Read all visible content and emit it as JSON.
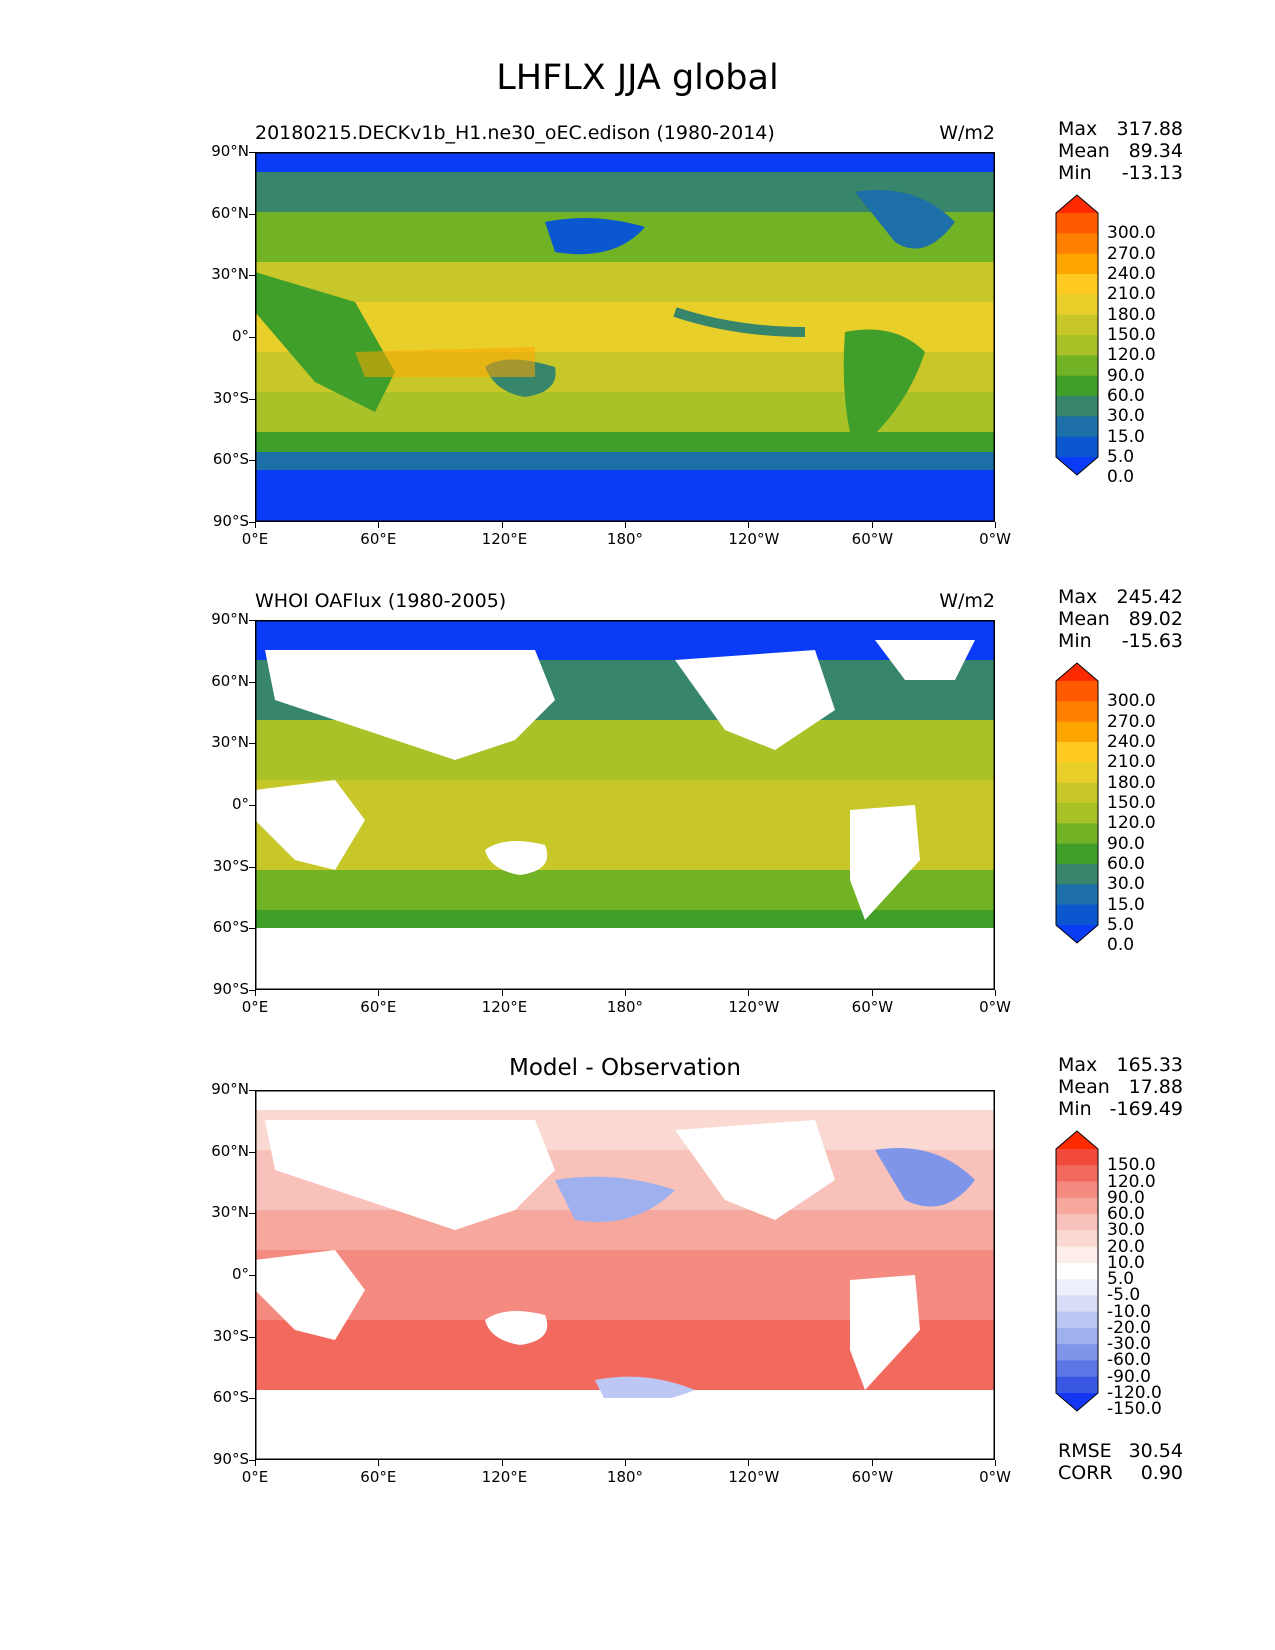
{
  "title": "LHFLX JJA global",
  "axes": {
    "lat_ticks": [
      "90°N",
      "60°N",
      "30°N",
      "0°",
      "30°S",
      "60°S",
      "90°S"
    ],
    "lon_ticks": [
      "0°E",
      "60°E",
      "120°E",
      "180°",
      "120°W",
      "60°W",
      "0°W"
    ]
  },
  "panels": [
    {
      "label": "20180215.DECKv1b_H1.ne30_oEC.edison (1980-2014)",
      "units": "W/m2",
      "stats": [
        [
          "Max",
          "317.88"
        ],
        [
          "Mean",
          "89.34"
        ],
        [
          "Min",
          "-13.13"
        ]
      ]
    },
    {
      "label": "WHOI OAFlux (1980-2005)",
      "units": "W/m2",
      "stats": [
        [
          "Max",
          "245.42"
        ],
        [
          "Mean",
          "89.02"
        ],
        [
          "Min",
          "-15.63"
        ]
      ]
    },
    {
      "label": "Model - Observation",
      "units": "",
      "stats": [
        [
          "Max",
          "165.33"
        ],
        [
          "Mean",
          "17.88"
        ],
        [
          "Min",
          "-169.49"
        ]
      ],
      "metrics": [
        [
          "RMSE",
          "30.54"
        ],
        [
          "CORR",
          "0.90"
        ]
      ]
    }
  ],
  "colorbar_field": {
    "ticks": [
      "300.0",
      "270.0",
      "240.0",
      "210.0",
      "180.0",
      "150.0",
      "120.0",
      "90.0",
      "60.0",
      "30.0",
      "15.0",
      "5.0",
      "0.0"
    ],
    "colors": [
      "#ff2a00",
      "#ff5a00",
      "#ff7f00",
      "#ffa500",
      "#ffcb20",
      "#e9cf2a",
      "#c7c72a",
      "#a8c228",
      "#72b326",
      "#3f9f2a",
      "#37856b",
      "#1d6fa8",
      "#0b57d0",
      "#0a3cf7"
    ]
  },
  "colorbar_diff": {
    "ticks": [
      "150.0",
      "120.0",
      "90.0",
      "60.0",
      "30.0",
      "20.0",
      "10.0",
      "5.0",
      "-5.0",
      "-10.0",
      "-20.0",
      "-30.0",
      "-60.0",
      "-90.0",
      "-120.0",
      "-150.0"
    ],
    "colors": [
      "#ff2a00",
      "#f14a3a",
      "#f26a5e",
      "#f48a80",
      "#f6a79e",
      "#f8c1b9",
      "#fbd9d3",
      "#fdeeea",
      "#ffffff",
      "#eef0fb",
      "#d7ddf7",
      "#bcc8f3",
      "#9fb0ef",
      "#7f95ea",
      "#5c76e6",
      "#3a57e4",
      "#1236f2"
    ]
  },
  "chart_data": [
    {
      "type": "heatmap",
      "title": "20180215.DECKv1b_H1.ne30_oEC.edison (1980-2014)",
      "units": "W/m2",
      "xlim": [
        0,
        360
      ],
      "ylim": [
        -90,
        90
      ],
      "levels": [
        0,
        5,
        15,
        30,
        60,
        90,
        120,
        150,
        180,
        210,
        240,
        270,
        300
      ],
      "max": 317.88,
      "mean": 89.34,
      "min": -13.13
    },
    {
      "type": "heatmap",
      "title": "WHOI OAFlux (1980-2005)",
      "units": "W/m2",
      "xlim": [
        0,
        360
      ],
      "ylim": [
        -90,
        90
      ],
      "levels": [
        0,
        5,
        15,
        30,
        60,
        90,
        120,
        150,
        180,
        210,
        240,
        270,
        300
      ],
      "max": 245.42,
      "mean": 89.02,
      "min": -15.63
    },
    {
      "type": "heatmap",
      "title": "Model - Observation",
      "xlim": [
        0,
        360
      ],
      "ylim": [
        -90,
        90
      ],
      "levels": [
        -150,
        -120,
        -90,
        -60,
        -30,
        -20,
        -10,
        -5,
        5,
        10,
        20,
        30,
        60,
        90,
        120,
        150
      ],
      "max": 165.33,
      "mean": 17.88,
      "min": -169.49,
      "rmse": 30.54,
      "corr": 0.9
    }
  ]
}
